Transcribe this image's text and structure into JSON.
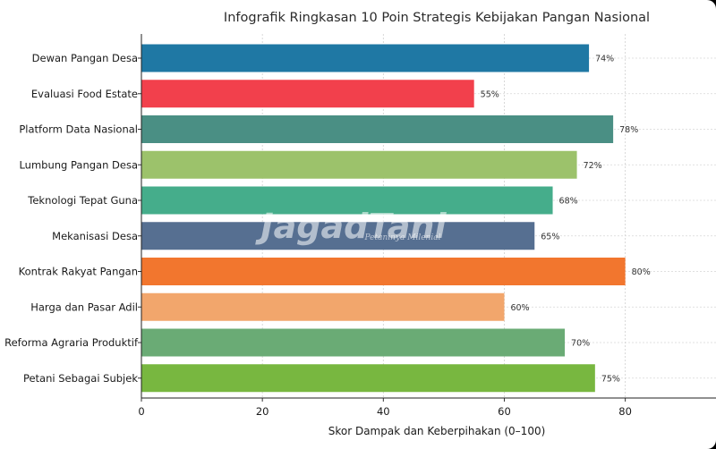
{
  "chart_data": {
    "type": "bar",
    "orientation": "horizontal",
    "title": "Infografik Ringkasan 10 Poin Strategis Kebijakan Pangan Nasional",
    "xlabel": "Skor Dampak dan Keberpihakan (0–100)",
    "ylabel": "",
    "xlim": [
      0,
      95
    ],
    "xticks": [
      0,
      20,
      40,
      60,
      80
    ],
    "grid": true,
    "categories": [
      "Dewan Pangan Desa",
      "Evaluasi Food Estate",
      "Platform Data Nasional",
      "Lumbung Pangan Desa",
      "Teknologi Tepat Guna",
      "Mekanisasi Desa",
      "Kontrak Rakyat Pangan",
      "Harga dan Pasar Adil",
      "Reforma Agraria Produktif",
      "Petani Sebagai Subjek"
    ],
    "values": [
      74,
      55,
      78,
      72,
      68,
      65,
      80,
      60,
      70,
      75
    ],
    "value_labels": [
      "74%",
      "55%",
      "78%",
      "72%",
      "68%",
      "65%",
      "80%",
      "60%",
      "70%",
      "75%"
    ],
    "colors": [
      "#1f78a4",
      "#f2404c",
      "#4a8f84",
      "#9cc26b",
      "#45ad8b",
      "#566f91",
      "#f2762e",
      "#f2a66c",
      "#6aab75",
      "#78b740"
    ]
  },
  "watermark": {
    "main": "JagadTani",
    "sub": "Petaninya Milenial"
  }
}
